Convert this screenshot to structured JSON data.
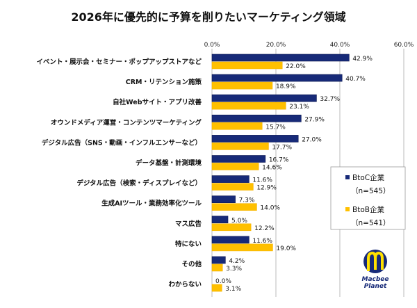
{
  "chart_data": {
    "type": "bar",
    "orientation": "horizontal",
    "title": "2026年に優先的に予算を削りたいマーケティング領域",
    "categories": [
      "イベント・展示会・セミナー・ポップアップストアなど",
      "CRM・リテンション施策",
      "自社Webサイト・アプリ改善",
      "オウンドメディア運営・コンテンツマーケティング",
      "デジタル広告（SNS・動画・インフルエンサーなど）",
      "データ基盤・計測環境",
      "デジタル広告（検索・ディスプレイなど）",
      "生成AIツール・業務効率化ツール",
      "マス広告",
      "特にない",
      "その他",
      "わからない"
    ],
    "series": [
      {
        "name": "BtoC企業",
        "n_label": "（n=545）",
        "color": "#172a78",
        "values": [
          42.9,
          40.7,
          32.7,
          27.9,
          27.0,
          16.7,
          11.6,
          7.3,
          5.0,
          11.6,
          4.2,
          0.0
        ],
        "labels": [
          "42.9%",
          "40.7%",
          "32.7%",
          "27.9%",
          "27.0%",
          "16.7%",
          "11.6%",
          "7.3%",
          "5.0%",
          "11.6%",
          "4.2%",
          "0.0%"
        ]
      },
      {
        "name": "BtoB企業",
        "n_label": "（n=541）",
        "color": "#ffc000",
        "values": [
          22.0,
          18.9,
          23.1,
          15.7,
          17.7,
          14.6,
          12.9,
          14.0,
          12.2,
          19.0,
          3.3,
          3.1
        ],
        "labels": [
          "22.0%",
          "18.9%",
          "23.1%",
          "15.7%",
          "17.7%",
          "14.6%",
          "12.9%",
          "14.0%",
          "12.2%",
          "19.0%",
          "3.3%",
          "3.1%"
        ]
      }
    ],
    "xlim": [
      0,
      60
    ],
    "xticks": [
      "0.0%",
      "20.0%",
      "40.0%",
      "60.0%"
    ],
    "xtick_values": [
      0,
      20,
      40,
      60
    ],
    "grid": true,
    "legend_placement": "right",
    "xlabel": "",
    "ylabel": ""
  },
  "logo": {
    "line1": "Macbee",
    "line2": "Planet"
  }
}
